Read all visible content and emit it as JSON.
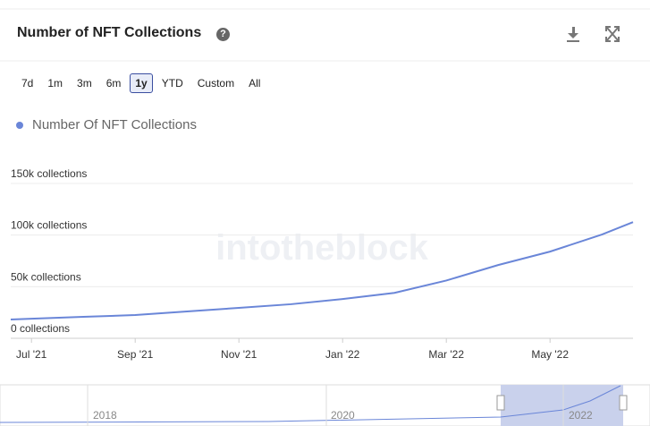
{
  "header": {
    "title": "Number of NFT Collections"
  },
  "range_buttons": {
    "options": [
      "7d",
      "1m",
      "3m",
      "6m",
      "1y",
      "YTD",
      "Custom",
      "All"
    ],
    "active": 4
  },
  "watermark": "intotheblock",
  "navigator": {
    "labels": [
      "2018",
      "2020",
      "2022"
    ]
  },
  "chart_data": {
    "type": "line",
    "series": [
      {
        "name": "Number Of NFT Collections",
        "color": "#6a86d8",
        "x": [
          -0.4,
          0,
          1,
          2,
          3,
          4,
          5,
          6,
          7,
          8,
          9,
          10,
          11,
          11.6
        ],
        "values": [
          18200,
          19000,
          20800,
          22500,
          26000,
          29500,
          33000,
          38000,
          44000,
          56000,
          71000,
          84000,
          100500,
          112600
        ]
      }
    ],
    "xlim": [
      -0.4,
      11.6
    ],
    "xticks": [
      {
        "value": 0,
        "label": "Jul '21"
      },
      {
        "value": 2,
        "label": "Sep '21"
      },
      {
        "value": 4,
        "label": "Nov '21"
      },
      {
        "value": 6,
        "label": "Jan '22"
      },
      {
        "value": 8,
        "label": "Mar '22"
      },
      {
        "value": 10,
        "label": "May '22"
      }
    ],
    "ylim": [
      0,
      150000
    ],
    "yticks": [
      {
        "value": 0,
        "label": "0 collections"
      },
      {
        "value": 50000,
        "label": "50k collections"
      },
      {
        "value": 100000,
        "label": "100k collections"
      },
      {
        "value": 150000,
        "label": "150k collections"
      }
    ],
    "grid": true
  }
}
